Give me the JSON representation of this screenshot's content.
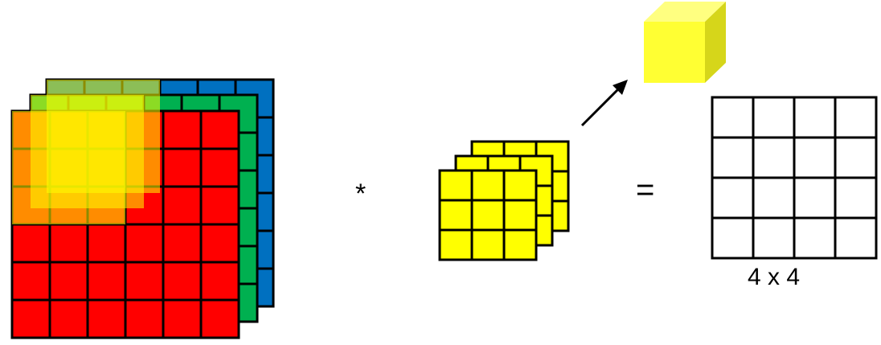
{
  "input_volume": {
    "rows": 6,
    "cols": 6,
    "channel_colors": [
      "#0070C0",
      "#00B050",
      "#FF0000"
    ]
  },
  "highlight": {
    "color": "#FFFF00"
  },
  "kernel": {
    "rows": 3,
    "cols": 3,
    "channels": 3,
    "color": "#FFFF00"
  },
  "output_cube": {
    "front": "#FFFF33",
    "top": "#FFFF80",
    "side": "#D6D61A"
  },
  "output_grid": {
    "rows": 4,
    "cols": 4
  },
  "operators": {
    "multiply": "*",
    "equals": "="
  },
  "output_size_label": "4 x 4"
}
